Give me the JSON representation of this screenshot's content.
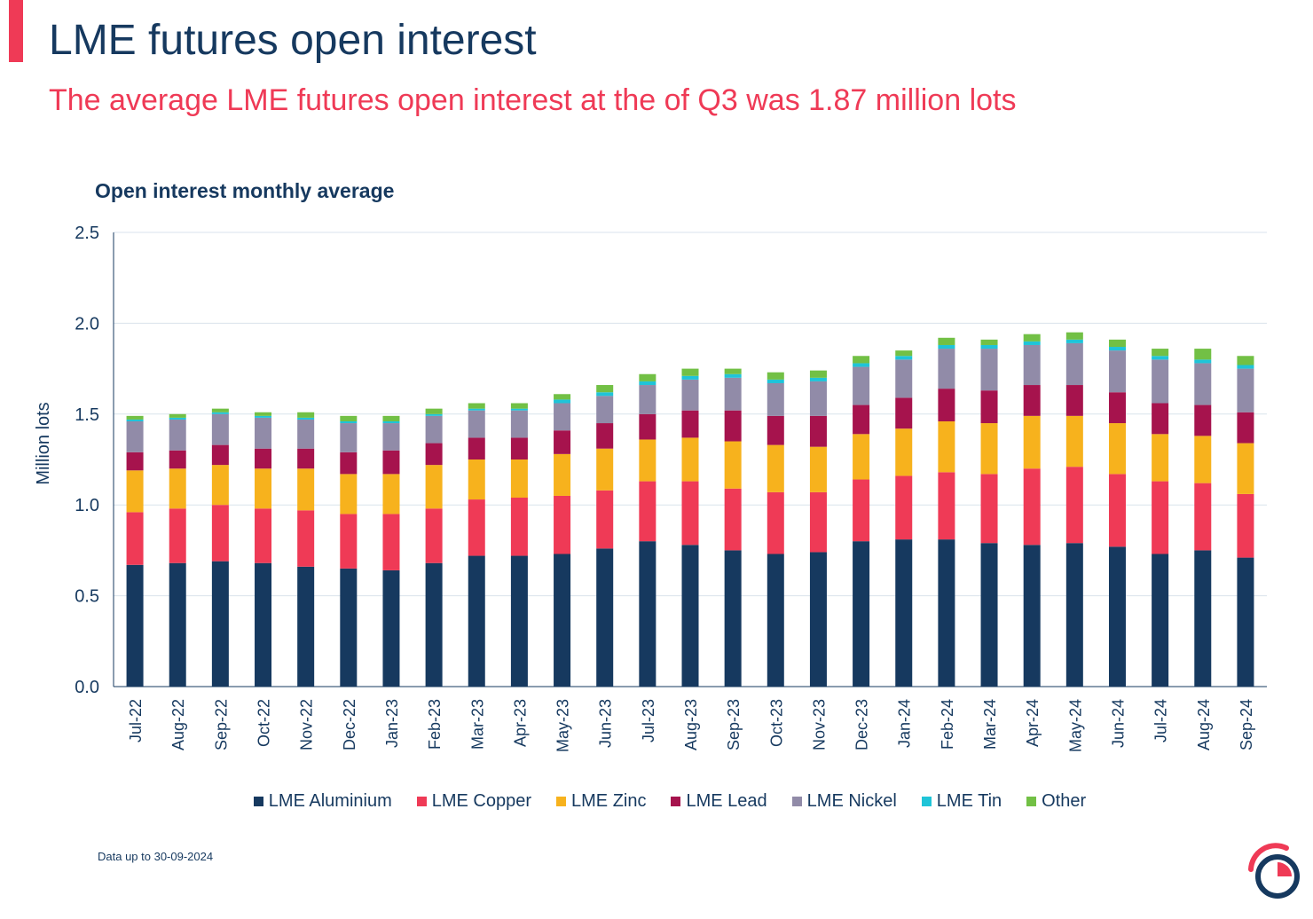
{
  "header": {
    "title": "LME futures open interest",
    "subtitle": "The average LME futures open interest at the of Q3 was 1.87 million lots"
  },
  "chart_title": "Open interest monthly average",
  "footnote": "Data up to 30-09-2024",
  "colors": {
    "accent": "#EF3A56",
    "navy": "#16395F",
    "grid": "#D9E3EC"
  },
  "chart_data": {
    "type": "bar",
    "stacked": true,
    "title": "Open interest monthly average",
    "ylabel": "Million lots",
    "xlabel": "",
    "ylim": [
      0,
      2.5
    ],
    "yticks": [
      "0.0",
      "0.5",
      "1.0",
      "1.5",
      "2.0",
      "2.5"
    ],
    "grid": true,
    "legend_position": "bottom",
    "categories": [
      "Jul-22",
      "Aug-22",
      "Sep-22",
      "Oct-22",
      "Nov-22",
      "Dec-22",
      "Jan-23",
      "Feb-23",
      "Mar-23",
      "Apr-23",
      "May-23",
      "Jun-23",
      "Jul-23",
      "Aug-23",
      "Sep-23",
      "Oct-23",
      "Nov-23",
      "Dec-23",
      "Jan-24",
      "Feb-24",
      "Mar-24",
      "Apr-24",
      "May-24",
      "Jun-24",
      "Jul-24",
      "Aug-24",
      "Sep-24"
    ],
    "series": [
      {
        "name": "LME Aluminium",
        "color": "#16395F",
        "values": [
          0.67,
          0.68,
          0.69,
          0.68,
          0.66,
          0.65,
          0.64,
          0.68,
          0.72,
          0.72,
          0.73,
          0.76,
          0.8,
          0.78,
          0.75,
          0.73,
          0.74,
          0.8,
          0.81,
          0.81,
          0.79,
          0.78,
          0.79,
          0.77,
          0.73,
          0.75,
          0.71
        ]
      },
      {
        "name": "LME Copper",
        "color": "#EF3A56",
        "values": [
          0.29,
          0.3,
          0.31,
          0.3,
          0.31,
          0.3,
          0.31,
          0.3,
          0.31,
          0.32,
          0.32,
          0.32,
          0.33,
          0.35,
          0.34,
          0.34,
          0.33,
          0.34,
          0.35,
          0.37,
          0.38,
          0.42,
          0.42,
          0.4,
          0.4,
          0.37,
          0.35
        ]
      },
      {
        "name": "LME Zinc",
        "color": "#F7B21D",
        "values": [
          0.23,
          0.22,
          0.22,
          0.22,
          0.23,
          0.22,
          0.22,
          0.24,
          0.22,
          0.21,
          0.23,
          0.23,
          0.23,
          0.24,
          0.26,
          0.26,
          0.25,
          0.25,
          0.26,
          0.28,
          0.28,
          0.29,
          0.28,
          0.28,
          0.26,
          0.26,
          0.28
        ]
      },
      {
        "name": "LME Lead",
        "color": "#A6134D",
        "values": [
          0.1,
          0.1,
          0.11,
          0.11,
          0.11,
          0.12,
          0.13,
          0.12,
          0.12,
          0.12,
          0.13,
          0.14,
          0.14,
          0.15,
          0.17,
          0.16,
          0.17,
          0.16,
          0.17,
          0.18,
          0.18,
          0.17,
          0.17,
          0.17,
          0.17,
          0.17,
          0.17
        ]
      },
      {
        "name": "LME Nickel",
        "color": "#918BA8",
        "values": [
          0.17,
          0.17,
          0.17,
          0.17,
          0.16,
          0.16,
          0.15,
          0.15,
          0.15,
          0.15,
          0.15,
          0.15,
          0.16,
          0.17,
          0.18,
          0.18,
          0.19,
          0.21,
          0.21,
          0.22,
          0.23,
          0.22,
          0.23,
          0.23,
          0.24,
          0.23,
          0.24
        ]
      },
      {
        "name": "LME Tin",
        "color": "#1FC4D8",
        "values": [
          0.01,
          0.01,
          0.01,
          0.01,
          0.01,
          0.01,
          0.01,
          0.01,
          0.01,
          0.01,
          0.02,
          0.02,
          0.02,
          0.02,
          0.02,
          0.02,
          0.02,
          0.02,
          0.02,
          0.02,
          0.02,
          0.02,
          0.02,
          0.02,
          0.02,
          0.02,
          0.02
        ]
      },
      {
        "name": "Other",
        "color": "#72C045",
        "values": [
          0.02,
          0.02,
          0.02,
          0.02,
          0.03,
          0.03,
          0.03,
          0.03,
          0.03,
          0.03,
          0.03,
          0.04,
          0.04,
          0.04,
          0.03,
          0.04,
          0.04,
          0.04,
          0.03,
          0.04,
          0.03,
          0.04,
          0.04,
          0.04,
          0.04,
          0.06,
          0.05
        ]
      }
    ]
  }
}
